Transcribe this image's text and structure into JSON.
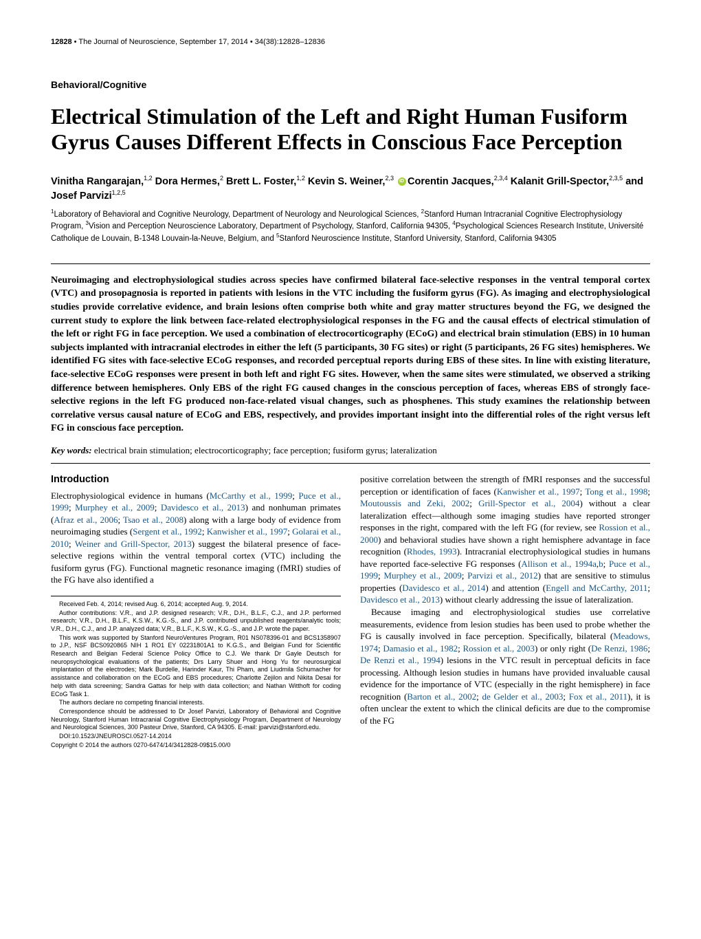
{
  "header": {
    "page_number": "12828",
    "journal_info": "The Journal of Neuroscience, September 17, 2014",
    "volume_info": "34(38):12828–12836"
  },
  "section_label": "Behavioral/Cognitive",
  "title": "Electrical Stimulation of the Left and Right Human Fusiform Gyrus Causes Different Effects in Conscious Face Perception",
  "authors_html": "Vinitha Rangarajan,<sup>1,2</sup> Dora Hermes,<sup>2</sup> Brett L. Foster,<sup>1,2</sup> Kevin S. Weiner,<sup>2,3</sup> <span class='orcid'></span>Corentin Jacques,<sup>2,3,4</sup> Kalanit Grill-Spector,<sup>2,3,5</sup> and Josef Parvizi<sup>1,2,5</sup>",
  "affiliations_html": "<sup>1</sup>Laboratory of Behavioral and Cognitive Neurology, Department of Neurology and Neurological Sciences, <sup>2</sup>Stanford Human Intracranial Cognitive Electrophysiology Program, <sup>3</sup>Vision and Perception Neuroscience Laboratory, Department of Psychology, Stanford, California 94305, <sup>4</sup>Psychological Sciences Research Institute, Université Catholique de Louvain, B-1348 Louvain-la-Neuve, Belgium, and <sup>5</sup>Stanford Neuroscience Institute, Stanford University, Stanford, California 94305",
  "abstract": "Neuroimaging and electrophysiological studies across species have confirmed bilateral face-selective responses in the ventral temporal cortex (VTC) and prosopagnosia is reported in patients with lesions in the VTC including the fusiform gyrus (FG). As imaging and electrophysiological studies provide correlative evidence, and brain lesions often comprise both white and gray matter structures beyond the FG, we designed the current study to explore the link between face-related electrophysiological responses in the FG and the causal effects of electrical stimulation of the left or right FG in face perception. We used a combination of electrocorticography (ECoG) and electrical brain stimulation (EBS) in 10 human subjects implanted with intracranial electrodes in either the left (5 participants, 30 FG sites) or right (5 participants, 26 FG sites) hemispheres. We identified FG sites with face-selective ECoG responses, and recorded perceptual reports during EBS of these sites. In line with existing literature, face-selective ECoG responses were present in both left and right FG sites. However, when the same sites were stimulated, we observed a striking difference between hemispheres. Only EBS of the right FG caused changes in the conscious perception of faces, whereas EBS of strongly face-selective regions in the left FG produced non-face-related visual changes, such as phosphenes. This study examines the relationship between correlative versus causal nature of ECoG and EBS, respectively, and provides important insight into the differential roles of the right versus left FG in conscious face perception.",
  "keywords": {
    "label": "Key words:",
    "text": "electrical brain stimulation; electrocorticography; face perception; fusiform gyrus; lateralization"
  },
  "intro_heading": "Introduction",
  "left_column": {
    "p1_html": "Electrophysiological evidence in humans (<span class='cite'>McCarthy et al., 1999</span>; <span class='cite'>Puce et al., 1999</span>; <span class='cite'>Murphey et al., 2009</span>; <span class='cite'>Davidesco et al., 2013</span>) and nonhuman primates (<span class='cite'>Afraz et al., 2006</span>; <span class='cite'>Tsao et al., 2008</span>) along with a large body of evidence from neuroimaging studies (<span class='cite'>Sergent et al., 1992</span>; <span class='cite'>Kanwisher et al., 1997</span>; <span class='cite'>Golarai et al., 2010</span>; <span class='cite'>Weiner and Grill-Spector, 2013</span>) suggest the bilateral presence of face-selective regions within the ventral temporal cortex (VTC) including the fusiform gyrus (FG). Functional magnetic resonance imaging (fMRI) studies of the FG have also identified a"
  },
  "right_column": {
    "p1_html": "positive correlation between the strength of fMRI responses and the successful perception or identification of faces (<span class='cite'>Kanwisher et al., 1997</span>; <span class='cite'>Tong et al., 1998</span>; <span class='cite'>Moutoussis and Zeki, 2002</span>; <span class='cite'>Grill-Spector et al., 2004</span>) without a clear lateralization effect—although some imaging studies have reported stronger responses in the right, compared with the left FG (for review, see <span class='cite'>Rossion et al., 2000</span>) and behavioral studies have shown a right hemisphere advantage in face recognition (<span class='cite'>Rhodes, 1993</span>). Intracranial electrophysiological studies in humans have reported face-selective FG responses (<span class='cite'>Allison et al., 1994a</span>,<span class='cite'>b</span>; <span class='cite'>Puce et al., 1999</span>; <span class='cite'>Murphey et al., 2009</span>; <span class='cite'>Parvizi et al., 2012</span>) that are sensitive to stimulus properties (<span class='cite'>Davidesco et al., 2014</span>) and attention (<span class='cite'>Engell and McCarthy, 2011</span>; <span class='cite'>Davidesco et al., 2013</span>) without clearly addressing the issue of lateralization.",
    "p2_html": "Because imaging and electrophysiological studies use correlative measurements, evidence from lesion studies has been used to probe whether the FG is causally involved in face perception. Specifically, bilateral (<span class='cite'>Meadows, 1974</span>; <span class='cite'>Damasio et al., 1982</span>; <span class='cite'>Rossion et al., 2003</span>) or only right (<span class='cite'>De Renzi, 1986</span>; <span class='cite'>De Renzi et al., 1994</span>) lesions in the VTC result in perceptual deficits in face processing. Although lesion studies in humans have provided invaluable causal evidence for the importance of VTC (especially in the right hemisphere) in face recognition (<span class='cite'>Barton et al., 2002</span>; <span class='cite'>de Gelder et al., 2003</span>; <span class='cite'>Fox et al., 2011</span>), it is often unclear the extent to which the clinical deficits are due to the compromise of the FG"
  },
  "footnotes": {
    "received": "Received Feb. 4, 2014; revised Aug. 6, 2014; accepted Aug. 9, 2014.",
    "contributions": "Author contributions: V.R., and J.P. designed research; V.R., D.H., B.L.F., C.J., and J.P. performed research; V.R., D.H., B.L.F., K.S.W., K.G.-S., and J.P. contributed unpublished reagents/analytic tools; V.R., D.H., C.J., and J.P. analyzed data; V.R., B.L.F., K.S.W., K.G.-S., and J.P. wrote the paper.",
    "funding": "This work was supported by Stanford NeuroVentures Program, R01 NS078396-01 and BCS1358907 to J.P., NSF BCS0920865 NIH 1 RO1 EY 02231801A1 to K.G.S., and Belgian Fund for Scientific Research and Belgian Federal Science Policy Office to C.J. We thank Dr Gayle Deutsch for neuropsychological evaluations of the patients; Drs Larry Shuer and Hong Yu for neurosurgical implantation of the electrodes; Mark Burdelle, Harinder Kaur, Thi Pham, and Liudmila Schumacher for assistance and collaboration on the ECoG and EBS procedures; Charlotte Zejilon and Nikita Desai for help with data screening; Sandra Gattas for help with data collection; and Nathan Witthoft for coding ECoG Task 1.",
    "competing": "The authors declare no competing financial interests.",
    "correspondence": "Correspondence should be addressed to Dr Josef Parvizi, Laboratory of Behavioral and Cognitive Neurology, Stanford Human Intracranial Cognitive Electrophysiology Program, Department of Neurology and Neurological Sciences, 300 Pasteur Drive, Stanford, CA 94305. E-mail: jparvizi@stanford.edu.",
    "doi": "DOI:10.1523/JNEUROSCI.0527-14.2014",
    "copyright": "Copyright © 2014 the authors   0270-6474/14/3412828-09$15.00/0"
  }
}
